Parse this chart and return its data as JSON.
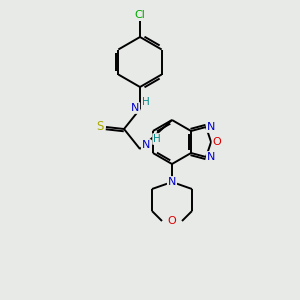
{
  "background_color": "#e8eae8",
  "bond_color": "#000000",
  "atom_colors": {
    "C": "#000000",
    "N": "#0000cc",
    "O": "#dd0000",
    "S": "#aaaa00",
    "Cl": "#00aa00",
    "H": "#008888"
  },
  "figsize": [
    3.0,
    3.0
  ],
  "dpi": 100
}
